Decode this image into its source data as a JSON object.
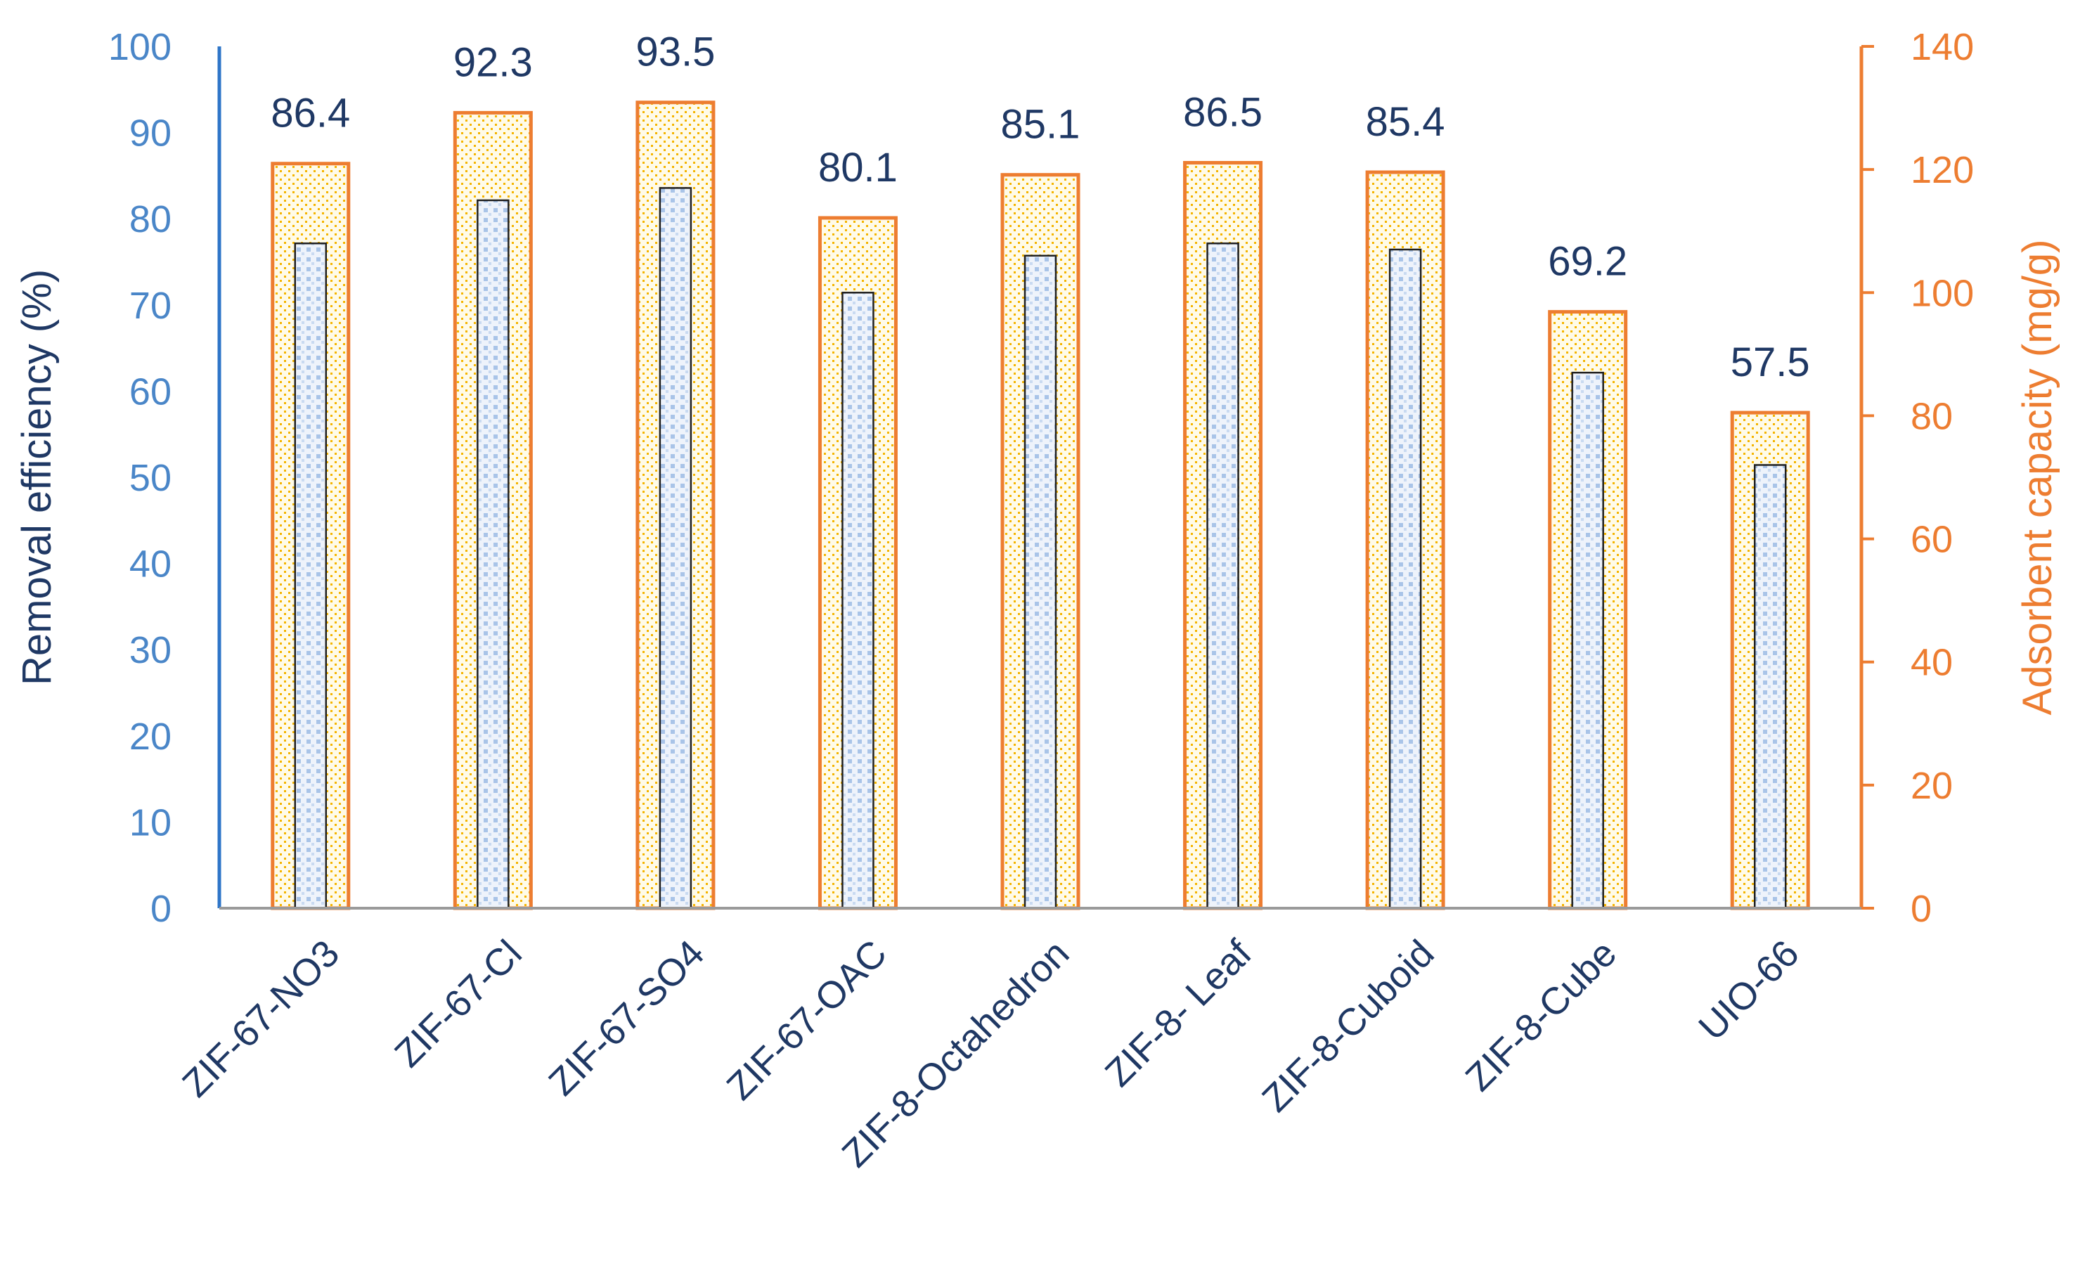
{
  "chart_data": {
    "type": "bar",
    "categories": [
      "ZIF-67-NO3",
      "ZIF-67-Cl",
      "ZIF-67-SO4",
      "ZIF-67-OAC",
      "ZIF-8-Octahedron",
      "ZIF-8- Leaf",
      "ZIF-8-Cuboid",
      "ZIF-8-Cube",
      "UIO-66"
    ],
    "series": [
      {
        "axis": "left",
        "style": "outer-orange-dotted",
        "values": [
          86.4,
          92.3,
          93.5,
          80.1,
          85.1,
          86.5,
          85.4,
          69.2,
          57.5
        ],
        "data_labels": [
          "86.4",
          "92.3",
          "93.5",
          "80.1",
          "85.1",
          "86.5",
          "85.4",
          "69.2",
          "57.5"
        ]
      },
      {
        "axis": "right",
        "style": "inner-blue-dotted",
        "values": [
          108,
          115,
          117,
          100,
          106,
          108,
          107,
          87,
          72
        ]
      }
    ],
    "y_left": {
      "label": "Removal efficiency (%)",
      "range": [
        0,
        100
      ],
      "ticks": [
        "0",
        "10",
        "20",
        "30",
        "40",
        "50",
        "60",
        "70",
        "80",
        "90",
        "100"
      ]
    },
    "y_right": {
      "label": "Adsorbent capacity (mg/g)",
      "range": [
        0,
        140
      ],
      "ticks": [
        "0",
        "20",
        "40",
        "60",
        "80",
        "100",
        "120",
        "140"
      ]
    },
    "grid": false,
    "legend": "none",
    "colors": {
      "outer_bar_edge": "#ed7d31",
      "outer_bar_dots": "#f4b400",
      "inner_bar_edge": "#1f1f1f",
      "inner_bar_dots": "#a9c4e8",
      "left_axis": "#2e75c8",
      "right_axis": "#ed7d31",
      "category_text": "#1f3864"
    }
  }
}
